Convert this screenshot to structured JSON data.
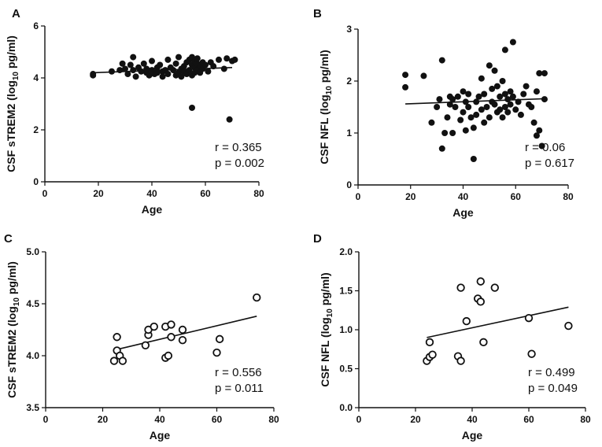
{
  "chart_data": [
    {
      "panel": "A",
      "type": "scatter",
      "xlabel": "Age",
      "ylabel_main": "CSF sTREM2 (log",
      "ylabel_sub": "10",
      "ylabel_tail": " pg/ml)",
      "xlim": [
        0,
        80
      ],
      "ylim": [
        0,
        6
      ],
      "xticks": [
        "0",
        "20",
        "40",
        "60",
        "80"
      ],
      "yticks": [
        "0",
        "2",
        "4",
        "6"
      ],
      "marker": "filled",
      "r_text": "r = 0.365",
      "p_text": "p = 0.002",
      "fit": [
        [
          18,
          4.2
        ],
        [
          70,
          4.4
        ]
      ],
      "points": [
        [
          18,
          4.1
        ],
        [
          18,
          4.15
        ],
        [
          25,
          4.25
        ],
        [
          28,
          4.3
        ],
        [
          29,
          4.55
        ],
        [
          30,
          4.35
        ],
        [
          31,
          4.15
        ],
        [
          32,
          4.5
        ],
        [
          33,
          4.8
        ],
        [
          33,
          4.3
        ],
        [
          34,
          4.05
        ],
        [
          35,
          4.4
        ],
        [
          36,
          4.25
        ],
        [
          37,
          4.55
        ],
        [
          38,
          4.2
        ],
        [
          38,
          4.35
        ],
        [
          39,
          4.1
        ],
        [
          40,
          4.65
        ],
        [
          40,
          4.3
        ],
        [
          41,
          4.15
        ],
        [
          42,
          4.4
        ],
        [
          42,
          4.2
        ],
        [
          43,
          4.5
        ],
        [
          44,
          4.25
        ],
        [
          44,
          4.05
        ],
        [
          45,
          4.3
        ],
        [
          46,
          4.7
        ],
        [
          46,
          4.15
        ],
        [
          47,
          4.4
        ],
        [
          48,
          4.3
        ],
        [
          49,
          4.55
        ],
        [
          49,
          4.1
        ],
        [
          50,
          4.2
        ],
        [
          50,
          4.8
        ],
        [
          51,
          4.35
        ],
        [
          51,
          4.05
        ],
        [
          52,
          4.45
        ],
        [
          52,
          4.25
        ],
        [
          53,
          4.6
        ],
        [
          53,
          4.15
        ],
        [
          54,
          4.7
        ],
        [
          54,
          4.3
        ],
        [
          55,
          4.5
        ],
        [
          55,
          4.1
        ],
        [
          55,
          4.8
        ],
        [
          56,
          4.4
        ],
        [
          56,
          4.2
        ],
        [
          56,
          4.65
        ],
        [
          57,
          4.3
        ],
        [
          57,
          4.55
        ],
        [
          57,
          4.75
        ],
        [
          58,
          4.45
        ],
        [
          58,
          4.2
        ],
        [
          59,
          4.6
        ],
        [
          59,
          4.35
        ],
        [
          60,
          4.5
        ],
        [
          61,
          4.25
        ],
        [
          62,
          4.6
        ],
        [
          63,
          4.45
        ],
        [
          65,
          4.7
        ],
        [
          67,
          4.35
        ],
        [
          68,
          4.75
        ],
        [
          70,
          4.65
        ],
        [
          71,
          4.7
        ],
        [
          55,
          2.85
        ],
        [
          69,
          2.4
        ]
      ]
    },
    {
      "panel": "B",
      "type": "scatter",
      "xlabel": "Age",
      "ylabel_main": "CSF NFL (log",
      "ylabel_sub": "10",
      "ylabel_tail": " pg/ml)",
      "xlim": [
        0,
        80
      ],
      "ylim": [
        0,
        3
      ],
      "xticks": [
        "0",
        "20",
        "40",
        "60",
        "80"
      ],
      "yticks": [
        "0",
        "1",
        "2",
        "3"
      ],
      "marker": "filled",
      "r_text": "r = 0.06",
      "p_text": "p = 0.617",
      "fit": [
        [
          18,
          1.56
        ],
        [
          71,
          1.66
        ]
      ],
      "points": [
        [
          18,
          2.12
        ],
        [
          18,
          1.88
        ],
        [
          25,
          2.1
        ],
        [
          28,
          1.2
        ],
        [
          30,
          1.5
        ],
        [
          31,
          1.65
        ],
        [
          32,
          0.7
        ],
        [
          32,
          2.4
        ],
        [
          33,
          1.0
        ],
        [
          34,
          1.3
        ],
        [
          35,
          1.55
        ],
        [
          35,
          1.7
        ],
        [
          36,
          1.65
        ],
        [
          36,
          1.0
        ],
        [
          37,
          1.5
        ],
        [
          38,
          1.7
        ],
        [
          39,
          1.25
        ],
        [
          40,
          1.4
        ],
        [
          40,
          1.8
        ],
        [
          41,
          1.05
        ],
        [
          41,
          1.6
        ],
        [
          42,
          1.75
        ],
        [
          42,
          1.5
        ],
        [
          43,
          1.3
        ],
        [
          44,
          1.1
        ],
        [
          44,
          0.5
        ],
        [
          45,
          1.6
        ],
        [
          45,
          1.35
        ],
        [
          46,
          1.7
        ],
        [
          47,
          1.45
        ],
        [
          47,
          2.05
        ],
        [
          48,
          1.2
        ],
        [
          48,
          1.75
        ],
        [
          49,
          1.5
        ],
        [
          50,
          2.3
        ],
        [
          50,
          1.3
        ],
        [
          51,
          1.85
        ],
        [
          51,
          1.6
        ],
        [
          52,
          2.2
        ],
        [
          52,
          1.55
        ],
        [
          53,
          1.4
        ],
        [
          53,
          1.9
        ],
        [
          54,
          1.7
        ],
        [
          54,
          1.45
        ],
        [
          55,
          2.0
        ],
        [
          55,
          1.3
        ],
        [
          56,
          1.75
        ],
        [
          56,
          2.6
        ],
        [
          56,
          1.5
        ],
        [
          57,
          1.65
        ],
        [
          57,
          1.4
        ],
        [
          58,
          1.8
        ],
        [
          58,
          1.55
        ],
        [
          59,
          2.75
        ],
        [
          59,
          1.7
        ],
        [
          60,
          1.45
        ],
        [
          61,
          1.6
        ],
        [
          62,
          1.35
        ],
        [
          63,
          1.75
        ],
        [
          64,
          1.9
        ],
        [
          65,
          1.55
        ],
        [
          66,
          1.5
        ],
        [
          67,
          1.2
        ],
        [
          68,
          1.8
        ],
        [
          68,
          0.95
        ],
        [
          69,
          2.15
        ],
        [
          69,
          1.05
        ],
        [
          70,
          0.75
        ],
        [
          71,
          2.15
        ],
        [
          71,
          1.65
        ]
      ]
    },
    {
      "panel": "C",
      "type": "scatter",
      "xlabel": "Age",
      "ylabel_main": "CSF sTREM2 (log",
      "ylabel_sub": "10",
      "ylabel_tail": " pg/ml)",
      "xlim": [
        0,
        80
      ],
      "ylim": [
        3.5,
        5.0
      ],
      "xticks": [
        "0",
        "20",
        "40",
        "60",
        "80"
      ],
      "yticks": [
        "3.5",
        "4.0",
        "4.5",
        "5.0"
      ],
      "marker": "open",
      "r_text": "r = 0.556",
      "p_text": "p = 0.011",
      "fit": [
        [
          25,
          4.06
        ],
        [
          74,
          4.38
        ]
      ],
      "points": [
        [
          24,
          3.95
        ],
        [
          25,
          4.18
        ],
        [
          25,
          4.05
        ],
        [
          26,
          4.0
        ],
        [
          27,
          3.95
        ],
        [
          35,
          4.1
        ],
        [
          36,
          4.2
        ],
        [
          36,
          4.25
        ],
        [
          38,
          4.28
        ],
        [
          42,
          3.98
        ],
        [
          42,
          4.28
        ],
        [
          43,
          4.0
        ],
        [
          44,
          4.3
        ],
        [
          44,
          4.18
        ],
        [
          48,
          4.25
        ],
        [
          48,
          4.15
        ],
        [
          60,
          4.03
        ],
        [
          61,
          4.16
        ],
        [
          74,
          4.56
        ]
      ]
    },
    {
      "panel": "D",
      "type": "scatter",
      "xlabel": "Age",
      "ylabel_main": "CSF NFL (log",
      "ylabel_sub": "10",
      "ylabel_tail": " pg/ml)",
      "xlim": [
        0,
        80
      ],
      "ylim": [
        0.0,
        2.0
      ],
      "xticks": [
        "0",
        "20",
        "40",
        "60",
        "80"
      ],
      "yticks": [
        "0.0",
        "0.5",
        "1.0",
        "1.5",
        "2.0"
      ],
      "marker": "open",
      "r_text": "r = 0.499",
      "p_text": "p = 0.049",
      "fit": [
        [
          24,
          0.9
        ],
        [
          74,
          1.29
        ]
      ],
      "points": [
        [
          24,
          0.6
        ],
        [
          25,
          0.65
        ],
        [
          25,
          0.84
        ],
        [
          26,
          0.68
        ],
        [
          35,
          0.66
        ],
        [
          36,
          0.6
        ],
        [
          36,
          1.54
        ],
        [
          38,
          1.11
        ],
        [
          42,
          1.4
        ],
        [
          43,
          1.36
        ],
        [
          43,
          1.62
        ],
        [
          44,
          0.84
        ],
        [
          48,
          1.54
        ],
        [
          60,
          1.15
        ],
        [
          61,
          0.69
        ],
        [
          74,
          1.05
        ]
      ]
    }
  ]
}
